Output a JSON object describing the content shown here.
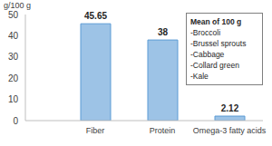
{
  "chart_data": {
    "type": "bar",
    "y_label": "g/100 g",
    "categories": [
      "Fiber",
      "Protein",
      "Omega-3 fatty acids"
    ],
    "values": [
      45.65,
      38,
      2.12
    ],
    "color": "#9dc3e6",
    "ylim": [
      0,
      50
    ],
    "yticks": [
      0,
      10,
      20,
      30,
      40,
      50
    ],
    "grid": false,
    "data_labels": true,
    "annotation": {
      "title": "Mean of 100 g",
      "items": [
        "-Broccoli",
        "-Brussel sprouts",
        "-Cabbage",
        "-Collard green",
        "-Kale"
      ]
    }
  }
}
